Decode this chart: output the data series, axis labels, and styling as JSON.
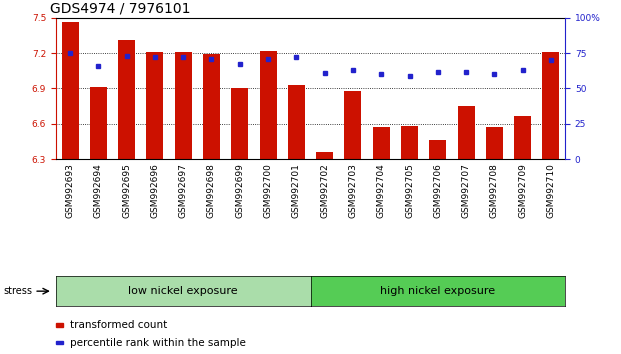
{
  "title": "GDS4974 / 7976101",
  "samples": [
    "GSM992693",
    "GSM992694",
    "GSM992695",
    "GSM992696",
    "GSM992697",
    "GSM992698",
    "GSM992699",
    "GSM992700",
    "GSM992701",
    "GSM992702",
    "GSM992703",
    "GSM992704",
    "GSM992705",
    "GSM992706",
    "GSM992707",
    "GSM992708",
    "GSM992709",
    "GSM992710"
  ],
  "bar_values": [
    7.46,
    6.91,
    7.31,
    7.21,
    7.21,
    7.19,
    6.9,
    7.22,
    6.93,
    6.36,
    6.88,
    6.57,
    6.58,
    6.46,
    6.75,
    6.57,
    6.67,
    7.21
  ],
  "percentile_values": [
    75,
    66,
    73,
    72,
    72,
    71,
    67,
    71,
    72,
    61,
    63,
    60,
    59,
    62,
    62,
    60,
    63,
    70
  ],
  "bar_bottom": 6.3,
  "ylim_left": [
    6.3,
    7.5
  ],
  "ylim_right": [
    0,
    100
  ],
  "yticks_left": [
    6.3,
    6.6,
    6.9,
    7.2,
    7.5
  ],
  "yticks_right": [
    0,
    25,
    50,
    75,
    100
  ],
  "bar_color": "#cc1100",
  "dot_color": "#2222cc",
  "group1_label": "low nickel exposure",
  "group2_label": "high nickel exposure",
  "group1_count": 9,
  "group2_count": 9,
  "group1_color": "#aaddaa",
  "group2_color": "#55cc55",
  "stress_label": "stress",
  "legend_bar": "transformed count",
  "legend_dot": "percentile rank within the sample",
  "bg_color": "#ffffff",
  "title_fontsize": 10,
  "tick_label_fontsize": 6.5,
  "group_label_fontsize": 8,
  "legend_fontsize": 7.5
}
